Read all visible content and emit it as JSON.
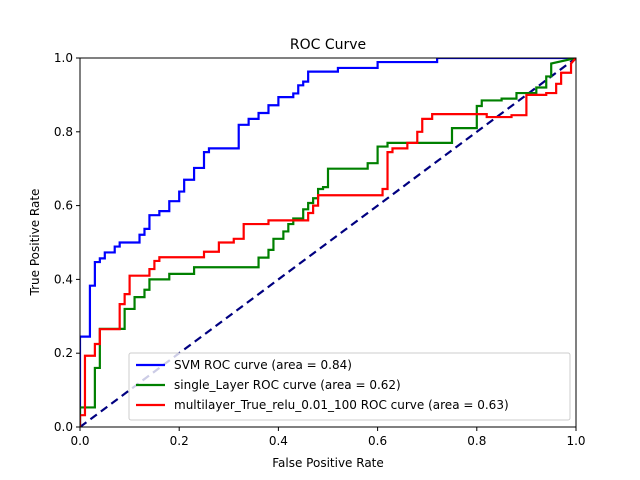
{
  "chart_data": {
    "type": "line",
    "title": "ROC Curve",
    "xlabel": "False Positive Rate",
    "ylabel": "True Positive Rate",
    "xlim": [
      0,
      1
    ],
    "ylim": [
      0,
      1
    ],
    "xticks": [
      0.0,
      0.2,
      0.4,
      0.6,
      0.8,
      1.0
    ],
    "yticks": [
      0.0,
      0.2,
      0.4,
      0.6,
      0.8,
      1.0
    ],
    "tick_labels_x": [
      "0.0",
      "0.2",
      "0.4",
      "0.6",
      "0.8",
      "1.0"
    ],
    "tick_labels_y": [
      "0.0",
      "0.2",
      "0.4",
      "0.6",
      "0.8",
      "1.0"
    ],
    "grid": false,
    "legend_position": "lower-right",
    "diagonal": {
      "x": [
        0,
        1
      ],
      "y": [
        0,
        1
      ],
      "color": "#000080",
      "style": "dashed"
    },
    "series": [
      {
        "name": "SVM ROC curve (area = 0.84)",
        "color": "#0000ff",
        "x": [
          0,
          0,
          0.02,
          0.02,
          0.03,
          0.03,
          0.04,
          0.04,
          0.05,
          0.05,
          0.07,
          0.07,
          0.08,
          0.08,
          0.12,
          0.12,
          0.13,
          0.13,
          0.14,
          0.14,
          0.16,
          0.16,
          0.18,
          0.18,
          0.2,
          0.2,
          0.21,
          0.21,
          0.23,
          0.23,
          0.25,
          0.25,
          0.26,
          0.26,
          0.32,
          0.32,
          0.34,
          0.34,
          0.36,
          0.36,
          0.38,
          0.38,
          0.4,
          0.4,
          0.43,
          0.43,
          0.44,
          0.44,
          0.45,
          0.45,
          0.46,
          0.46,
          0.52,
          0.52,
          0.6,
          0.6,
          0.72,
          0.72,
          1.0
        ],
        "y": [
          0,
          0.245,
          0.245,
          0.383,
          0.383,
          0.447,
          0.447,
          0.457,
          0.457,
          0.473,
          0.473,
          0.489,
          0.489,
          0.5,
          0.5,
          0.521,
          0.521,
          0.537,
          0.537,
          0.574,
          0.574,
          0.585,
          0.585,
          0.612,
          0.612,
          0.638,
          0.638,
          0.67,
          0.67,
          0.702,
          0.702,
          0.745,
          0.745,
          0.755,
          0.755,
          0.819,
          0.819,
          0.835,
          0.835,
          0.851,
          0.851,
          0.872,
          0.872,
          0.894,
          0.894,
          0.904,
          0.904,
          0.926,
          0.926,
          0.936,
          0.936,
          0.963,
          0.963,
          0.973,
          0.973,
          0.989,
          0.989,
          1.0,
          1.0
        ]
      },
      {
        "name": "single_Layer ROC curve (area = 0.62)",
        "color": "#008000",
        "x": [
          0,
          0,
          0.01,
          0.01,
          0.03,
          0.03,
          0.04,
          0.04,
          0.08,
          0.08,
          0.09,
          0.09,
          0.11,
          0.11,
          0.13,
          0.13,
          0.14,
          0.14,
          0.18,
          0.18,
          0.23,
          0.23,
          0.36,
          0.36,
          0.38,
          0.38,
          0.39,
          0.39,
          0.41,
          0.41,
          0.42,
          0.42,
          0.43,
          0.43,
          0.45,
          0.45,
          0.46,
          0.46,
          0.47,
          0.47,
          0.48,
          0.48,
          0.49,
          0.49,
          0.5,
          0.5,
          0.52,
          0.52,
          0.58,
          0.58,
          0.6,
          0.6,
          0.62,
          0.62,
          0.64,
          0.64,
          0.75,
          0.75,
          0.79,
          0.79,
          0.8,
          0.8,
          0.81,
          0.81,
          0.82,
          0.82,
          0.85,
          0.85,
          0.88,
          0.88,
          0.92,
          0.92,
          0.94,
          0.94,
          0.95,
          0.95,
          1.0
        ],
        "y": [
          0,
          0.053,
          0.053,
          0.053,
          0.053,
          0.16,
          0.16,
          0.266,
          0.266,
          0.266,
          0.266,
          0.32,
          0.32,
          0.352,
          0.352,
          0.372,
          0.372,
          0.4,
          0.4,
          0.415,
          0.415,
          0.433,
          0.433,
          0.459,
          0.459,
          0.48,
          0.48,
          0.51,
          0.51,
          0.53,
          0.53,
          0.55,
          0.55,
          0.565,
          0.565,
          0.59,
          0.59,
          0.607,
          0.607,
          0.62,
          0.62,
          0.645,
          0.645,
          0.65,
          0.65,
          0.7,
          0.7,
          0.7,
          0.7,
          0.715,
          0.715,
          0.76,
          0.76,
          0.77,
          0.77,
          0.77,
          0.77,
          0.81,
          0.81,
          0.81,
          0.81,
          0.87,
          0.87,
          0.885,
          0.885,
          0.885,
          0.885,
          0.89,
          0.89,
          0.905,
          0.905,
          0.92,
          0.92,
          0.95,
          0.95,
          0.985,
          1.0
        ]
      },
      {
        "name": "multilayer_True_relu_0.01_100 ROC curve (area = 0.63)",
        "color": "#ff0000",
        "x": [
          0,
          0,
          0.01,
          0.01,
          0.03,
          0.03,
          0.04,
          0.04,
          0.05,
          0.05,
          0.08,
          0.08,
          0.09,
          0.09,
          0.1,
          0.1,
          0.14,
          0.14,
          0.15,
          0.15,
          0.16,
          0.16,
          0.25,
          0.25,
          0.28,
          0.28,
          0.31,
          0.31,
          0.33,
          0.33,
          0.38,
          0.38,
          0.46,
          0.46,
          0.47,
          0.47,
          0.48,
          0.48,
          0.61,
          0.61,
          0.62,
          0.62,
          0.63,
          0.63,
          0.66,
          0.66,
          0.68,
          0.68,
          0.69,
          0.69,
          0.71,
          0.71,
          0.82,
          0.82,
          0.87,
          0.87,
          0.9,
          0.9,
          0.94,
          0.94,
          0.96,
          0.96,
          0.97,
          0.97,
          0.99,
          0.99,
          1.0
        ],
        "y": [
          0,
          0.032,
          0.032,
          0.193,
          0.193,
          0.225,
          0.225,
          0.265,
          0.265,
          0.265,
          0.265,
          0.333,
          0.333,
          0.36,
          0.36,
          0.41,
          0.41,
          0.428,
          0.428,
          0.45,
          0.45,
          0.46,
          0.46,
          0.475,
          0.475,
          0.5,
          0.5,
          0.51,
          0.51,
          0.55,
          0.55,
          0.56,
          0.56,
          0.58,
          0.58,
          0.6,
          0.6,
          0.628,
          0.628,
          0.645,
          0.645,
          0.745,
          0.745,
          0.755,
          0.755,
          0.77,
          0.77,
          0.8,
          0.8,
          0.835,
          0.835,
          0.848,
          0.848,
          0.84,
          0.84,
          0.845,
          0.845,
          0.9,
          0.9,
          0.905,
          0.905,
          0.93,
          0.93,
          0.96,
          0.96,
          0.985,
          1.0
        ]
      }
    ]
  }
}
